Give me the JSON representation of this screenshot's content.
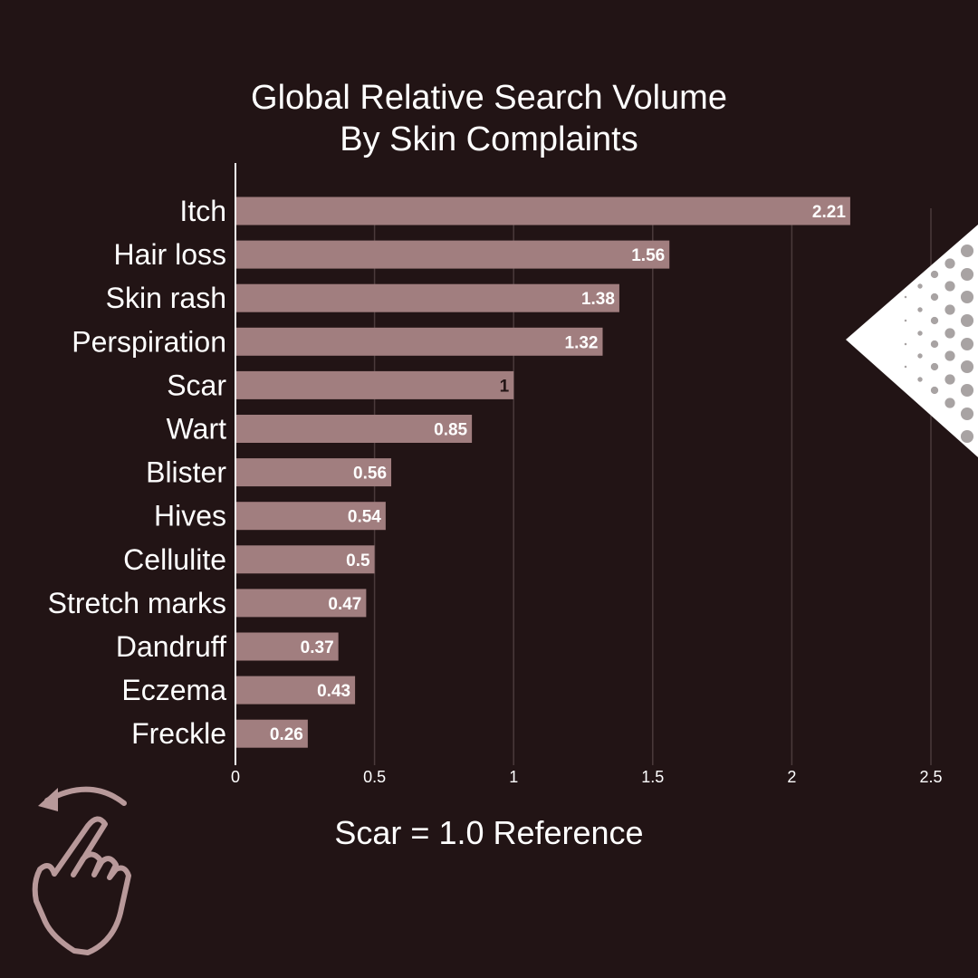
{
  "colors": {
    "background": "#221415",
    "bar": "#a17e7f",
    "grid": "#4a3a3b",
    "axis": "#ffffff",
    "text": "#ffffff",
    "value_label_default": "#ffffff",
    "value_label_reference": "#221415",
    "gesture_icon": "#b8999a",
    "dot": "#a8a3a3",
    "triangle": "#ffffff"
  },
  "footnote": "Scar = 1.0 Reference",
  "icons": {
    "gesture": "swipe-hand-icon",
    "decoration": "halftone-triangle-icon"
  },
  "chart_data": {
    "type": "bar",
    "orientation": "horizontal",
    "title_lines": [
      "Global Relative Search Volume",
      "By Skin Complaints"
    ],
    "categories": [
      "Itch",
      "Hair loss",
      "Skin rash",
      "Perspiration",
      "Scar",
      "Wart",
      "Blister",
      "Hives",
      "Cellulite",
      "Stretch marks",
      "Dandruff",
      "Eczema",
      "Freckle"
    ],
    "values": [
      2.21,
      1.56,
      1.38,
      1.32,
      1,
      0.85,
      0.56,
      0.54,
      0.5,
      0.47,
      0.37,
      0.43,
      0.26
    ],
    "value_labels": [
      "2.21",
      "1.56",
      "1.38",
      "1.32",
      "1",
      "0.85",
      "0.56",
      "0.54",
      "0.5",
      "0.47",
      "0.37",
      "0.43",
      "0.26"
    ],
    "reference_category": "Scar",
    "xlim": [
      0,
      2.5
    ],
    "xticks": [
      0,
      0.5,
      1,
      1.5,
      2,
      2.5
    ],
    "xtick_labels": [
      "0",
      "0.5",
      "1",
      "1.5",
      "2",
      "2.5"
    ],
    "xlabel": "",
    "ylabel": "",
    "grid": "vertical",
    "legend": "none"
  }
}
